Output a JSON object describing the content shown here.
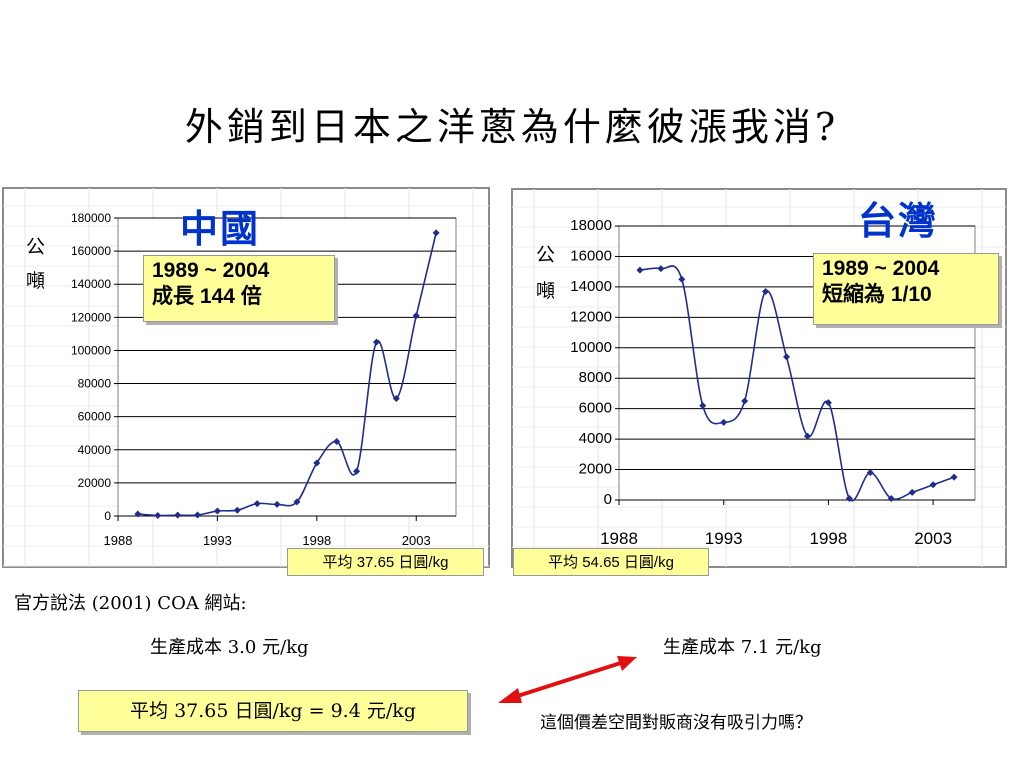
{
  "title": "外銷到日本之洋蔥為什麼彼漲我消?",
  "left": {
    "label": "中國",
    "ylabel_1": "公",
    "ylabel_2": "噸",
    "note_line1": "1989 ~ 2004",
    "note_line2": "成長 144 倍",
    "average": "平均 37.65 日圓/kg",
    "cost": "生產成本 3.0 元/kg"
  },
  "right": {
    "label": "台灣",
    "ylabel_1": "公",
    "ylabel_2": "噸",
    "note_line1": "1989 ~ 2004",
    "note_line2": "短縮為 1/10",
    "average": "平均 54.65 日圓/kg",
    "cost": "生產成本 7.1 元/kg"
  },
  "official": "官方說法 (2001)  COA 網站:",
  "bottom_box": "平均 37.65 日圓/kg = 9.4 元/kg",
  "question": "這個價差空間對販商沒有吸引力嗎？",
  "colors": {
    "line": "#1f2d8c",
    "marker": "#1f2d8c",
    "highlight": "#ffff99",
    "arrow": "#e01010",
    "label_blue": "#0033cc"
  },
  "chart_data": [
    {
      "type": "line",
      "xlim": [
        1988,
        2005
      ],
      "xticks": [
        1988,
        1993,
        1998,
        2003
      ],
      "ylim": [
        0,
        180000
      ],
      "yticks": [
        0,
        20000,
        40000,
        60000,
        80000,
        100000,
        120000,
        140000,
        160000,
        180000
      ],
      "grid": true,
      "series": [
        {
          "x": [
            1989,
            1990,
            1991,
            1992,
            1993,
            1994,
            1995,
            1996,
            1997,
            1998,
            1999,
            2000,
            2001,
            2002,
            2003,
            2004
          ],
          "values": [
            1200,
            300,
            500,
            600,
            3000,
            3500,
            7500,
            7000,
            8500,
            32000,
            45000,
            27000,
            105000,
            71000,
            121000,
            171000
          ]
        }
      ]
    },
    {
      "type": "line",
      "xlim": [
        1988,
        2005
      ],
      "xticks": [
        1988,
        1993,
        1998,
        2003
      ],
      "ylim": [
        0,
        18000
      ],
      "yticks": [
        0,
        2000,
        4000,
        6000,
        8000,
        10000,
        12000,
        14000,
        16000,
        18000
      ],
      "grid": true,
      "series": [
        {
          "x": [
            1989,
            1990,
            1991,
            1992,
            1993,
            1994,
            1995,
            1996,
            1997,
            1998,
            1999,
            2000,
            2001,
            2002,
            2003,
            2004
          ],
          "values": [
            15100,
            15200,
            14500,
            6200,
            5100,
            6500,
            13700,
            9400,
            4200,
            6400,
            100,
            1800,
            100,
            500,
            1000,
            1500
          ]
        }
      ]
    }
  ]
}
